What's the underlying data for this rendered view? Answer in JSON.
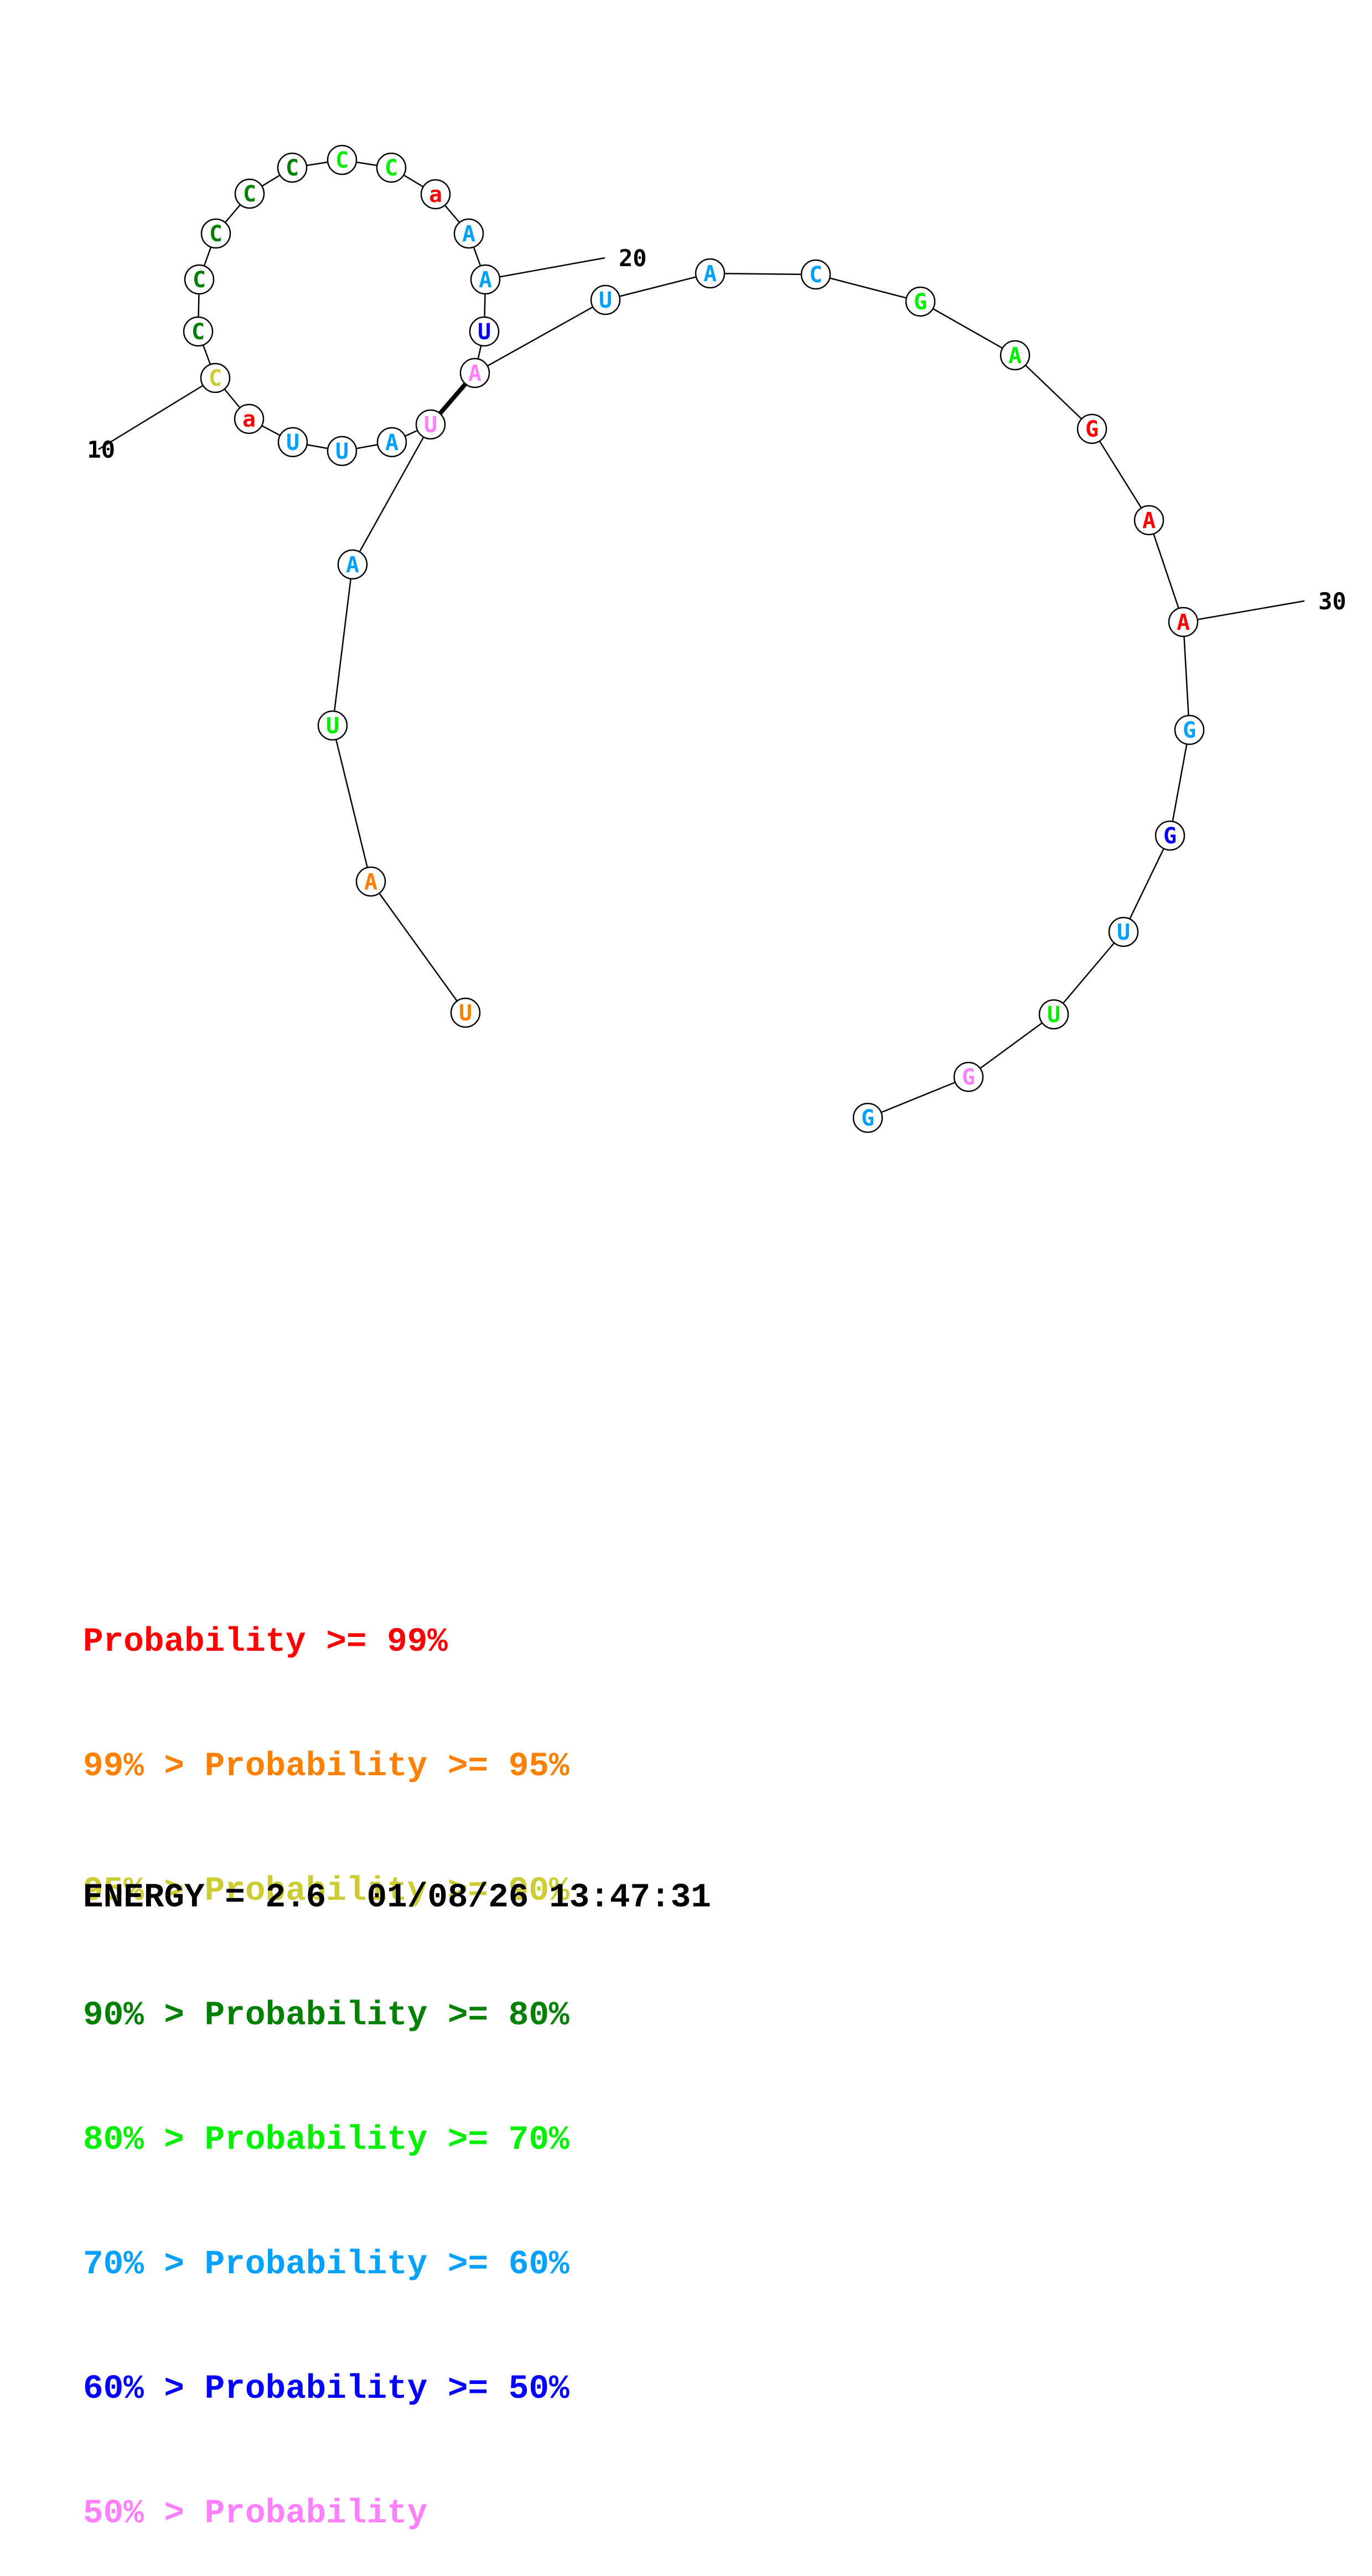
{
  "structure": {
    "nucleotides": [
      {
        "n": 1,
        "base": "U",
        "color": "#ff8000"
      },
      {
        "n": 2,
        "base": "A",
        "color": "#ff8000"
      },
      {
        "n": 3,
        "base": "U",
        "color": "#00ee00"
      },
      {
        "n": 4,
        "base": "A",
        "color": "#00a0ff"
      },
      {
        "n": 5,
        "base": "U",
        "color": "#ff80ff"
      },
      {
        "n": 6,
        "base": "A",
        "color": "#00a0ff"
      },
      {
        "n": 7,
        "base": "U",
        "color": "#00a0ff"
      },
      {
        "n": 8,
        "base": "U",
        "color": "#00a0ff"
      },
      {
        "n": 9,
        "base": "a",
        "color": "#ff0000"
      },
      {
        "n": 10,
        "base": "C",
        "color": "#cccc33"
      },
      {
        "n": 11,
        "base": "C",
        "color": "#008000"
      },
      {
        "n": 12,
        "base": "C",
        "color": "#008000"
      },
      {
        "n": 13,
        "base": "C",
        "color": "#008000"
      },
      {
        "n": 14,
        "base": "C",
        "color": "#008000"
      },
      {
        "n": 15,
        "base": "C",
        "color": "#008000"
      },
      {
        "n": 16,
        "base": "C",
        "color": "#00ee00"
      },
      {
        "n": 17,
        "base": "C",
        "color": "#00ee00"
      },
      {
        "n": 18,
        "base": "a",
        "color": "#ff0000"
      },
      {
        "n": 19,
        "base": "A",
        "color": "#00a0ff"
      },
      {
        "n": 20,
        "base": "A",
        "color": "#00a0ff"
      },
      {
        "n": 21,
        "base": "U",
        "color": "#0000ff"
      },
      {
        "n": 22,
        "base": "A",
        "color": "#ff80ff"
      },
      {
        "n": 23,
        "base": "U",
        "color": "#00a0ff"
      },
      {
        "n": 24,
        "base": "A",
        "color": "#00a0ff"
      },
      {
        "n": 25,
        "base": "C",
        "color": "#00a0ff"
      },
      {
        "n": 26,
        "base": "G",
        "color": "#00ee00"
      },
      {
        "n": 27,
        "base": "A",
        "color": "#00ee00"
      },
      {
        "n": 28,
        "base": "G",
        "color": "#ff0000"
      },
      {
        "n": 29,
        "base": "A",
        "color": "#ff0000"
      },
      {
        "n": 30,
        "base": "A",
        "color": "#ff0000"
      },
      {
        "n": 31,
        "base": "G",
        "color": "#00a0ff"
      },
      {
        "n": 32,
        "base": "G",
        "color": "#0000ff"
      },
      {
        "n": 33,
        "base": "U",
        "color": "#00a0ff"
      },
      {
        "n": 34,
        "base": "U",
        "color": "#00ee00"
      },
      {
        "n": 35,
        "base": "G",
        "color": "#ff80ff"
      },
      {
        "n": 36,
        "base": "G",
        "color": "#00a0ff"
      }
    ],
    "pairs": [
      [
        5,
        22
      ]
    ],
    "tick_labels": [
      {
        "n": 10,
        "text": "10"
      },
      {
        "n": 20,
        "text": "20"
      },
      {
        "n": 30,
        "text": "30"
      }
    ]
  },
  "legend": [
    {
      "prefix": "",
      "text": "Probability >= 99%",
      "color": "#ff0000"
    },
    {
      "prefix": "99% > ",
      "text": "Probability >= 95%",
      "color": "#ff8000"
    },
    {
      "prefix": "95% > ",
      "text": "Probability >= 90%",
      "color": "#cccc33"
    },
    {
      "prefix": "90% > ",
      "text": "Probability >= 80%",
      "color": "#008000"
    },
    {
      "prefix": "80% > ",
      "text": "Probability >= 70%",
      "color": "#00ee00"
    },
    {
      "prefix": "70% > ",
      "text": "Probability >= 60%",
      "color": "#00a0ff"
    },
    {
      "prefix": "60% > ",
      "text": "Probability >= 50%",
      "color": "#0000ff"
    },
    {
      "prefix": "50% > ",
      "text": "Probability",
      "color": "#ff80ff"
    }
  ],
  "footer": {
    "energy": "ENERGY = 2.6",
    "timestamp": "01/08/26 13:47:31"
  }
}
